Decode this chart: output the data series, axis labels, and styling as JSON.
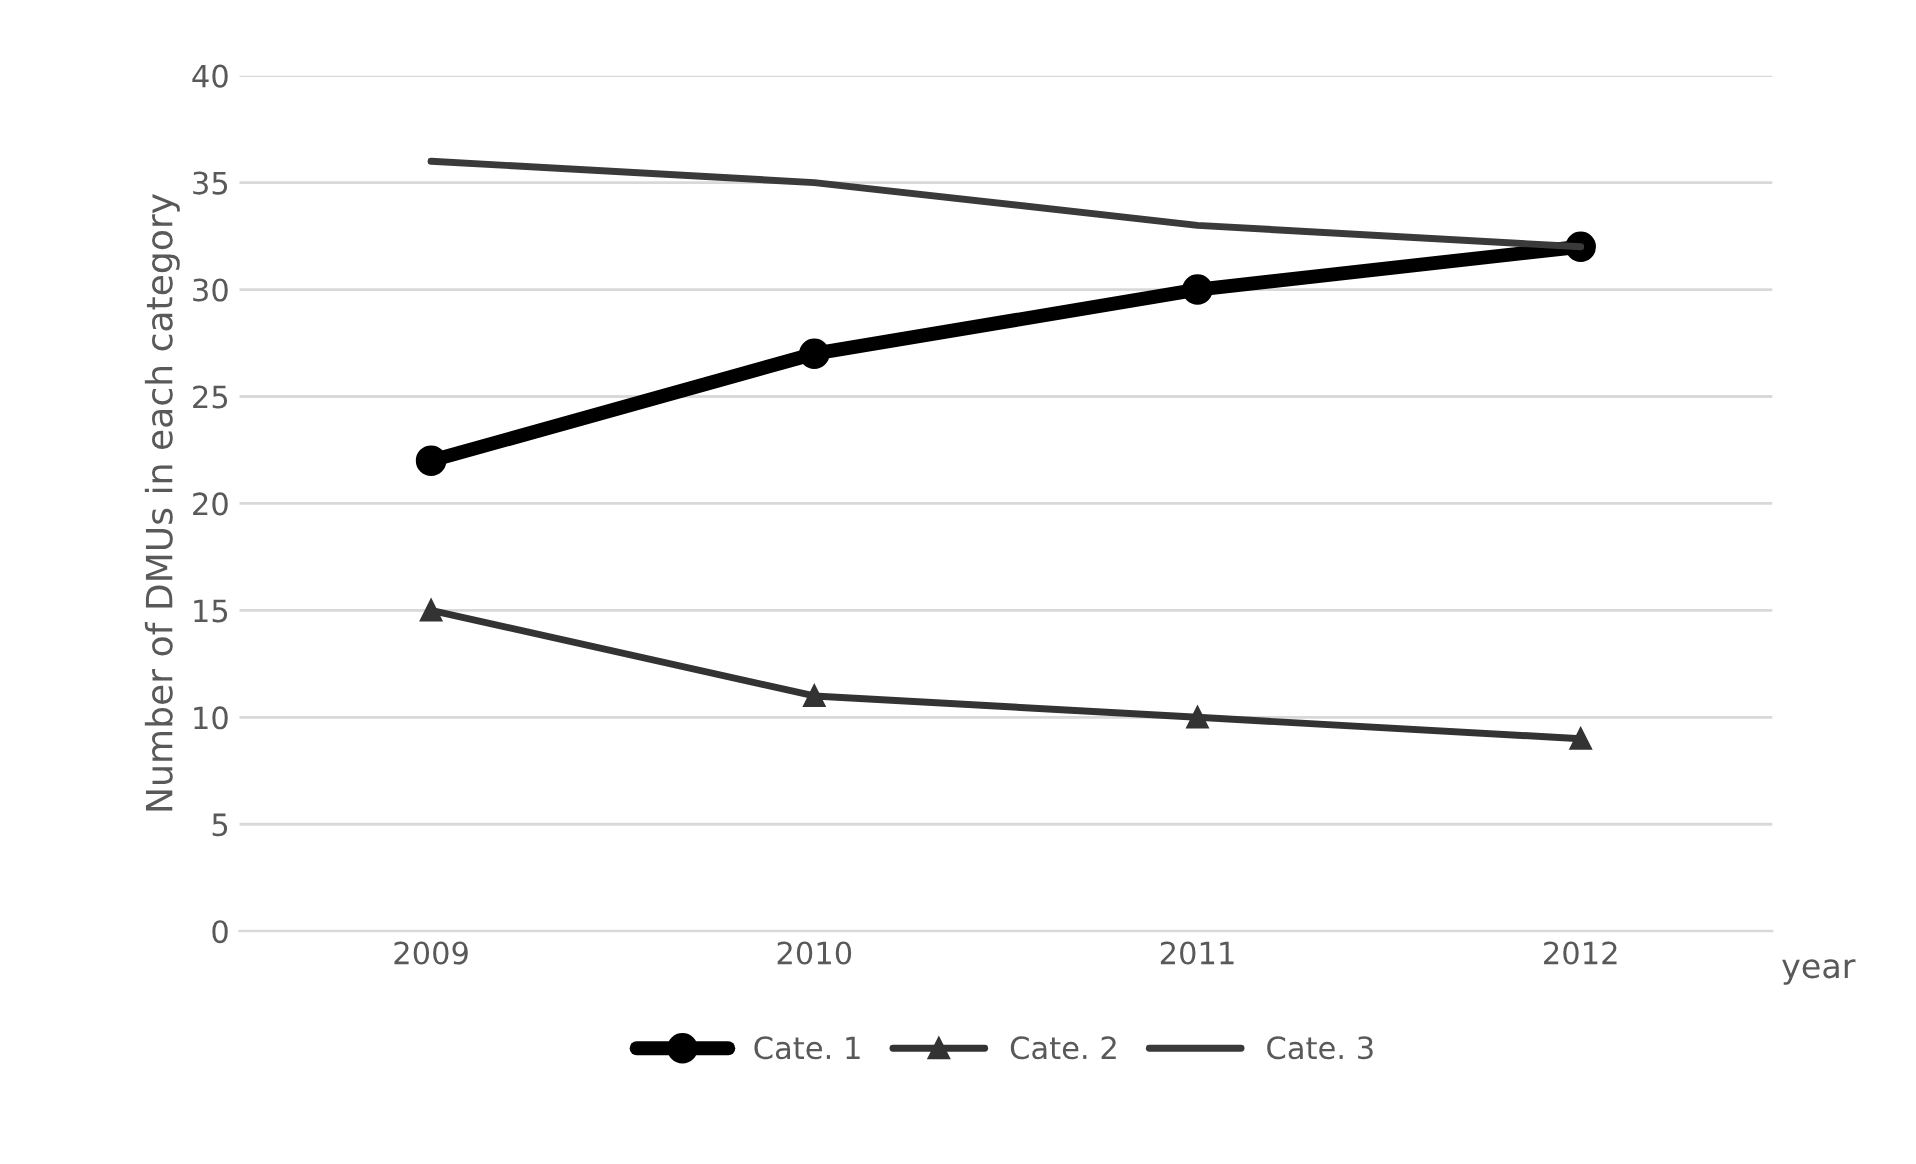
{
  "chart_data": {
    "type": "line",
    "ylabel": "Number of DMUs in each category",
    "xlabel": "year",
    "categories": [
      "2009",
      "2010",
      "2011",
      "2012"
    ],
    "series": [
      {
        "name": "Cate. 1",
        "color": "#000000",
        "values": [
          22,
          27,
          30,
          32
        ],
        "marker": "circle"
      },
      {
        "name": "Cate. 2",
        "color": "#333333",
        "values": [
          15,
          11,
          10,
          9
        ],
        "marker": "triangle"
      },
      {
        "name": "Cate. 3",
        "color": "#3a3a3a",
        "values": [
          36,
          35,
          33,
          32
        ],
        "marker": "none"
      }
    ],
    "ylim": [
      0,
      40
    ],
    "yticks": [
      0,
      5,
      10,
      15,
      20,
      25,
      30,
      35,
      40
    ],
    "grid": "y",
    "legend": "bottom"
  }
}
